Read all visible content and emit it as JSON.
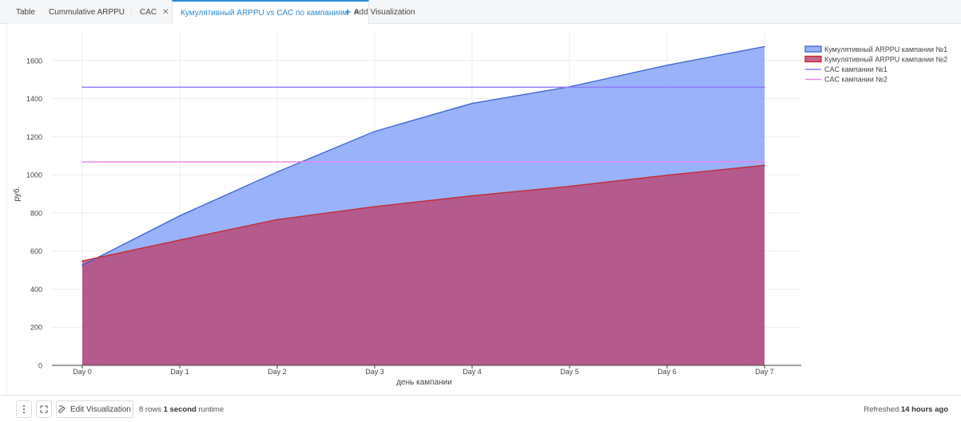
{
  "tabs": [
    {
      "label": "Table",
      "closable": false,
      "active": false
    },
    {
      "label": "Cummulative ARPPU",
      "closable": true,
      "active": false
    },
    {
      "label": "CAC",
      "closable": true,
      "active": false
    },
    {
      "label": "Кумулятивный ARPPU vs CAC по кампаниям",
      "closable": true,
      "active": true
    }
  ],
  "add_visualization_label": "Add Visualization",
  "footer": {
    "edit_label": "Edit Visualization",
    "rows_count": "8 rows",
    "runtime_value": "1 second",
    "runtime_label": "runtime",
    "refreshed_prefix": "Refreshed",
    "refreshed_value": "14 hours ago"
  },
  "colors": {
    "accent": "#2a8ad6",
    "series1_line": "#3d63d6",
    "series1_fill": "#7f9ff7",
    "series2_line": "#c62828",
    "series2_fill": "#b84a7a",
    "cac1": "#8f78ff",
    "cac2": "#ee82ee"
  },
  "chart_data": {
    "type": "area",
    "title": "",
    "xlabel": "день кампании",
    "ylabel": "руб.",
    "categories": [
      "Day 0",
      "Day 1",
      "Day 2",
      "Day 3",
      "Day 4",
      "Day 5",
      "Day 6",
      "Day 7"
    ],
    "ylim": [
      0,
      1750
    ],
    "yticks": [
      0,
      200,
      400,
      600,
      800,
      1000,
      1200,
      1400,
      1600
    ],
    "grid": true,
    "legend_position": "top-right",
    "series": [
      {
        "name": "Кумулятивный ARPPU кампании №1",
        "kind": "area",
        "values": [
          525,
          785,
          1015,
          1228,
          1375,
          1462,
          1575,
          1673
        ]
      },
      {
        "name": "Кумулятивный ARPPU кампании №2",
        "kind": "area",
        "values": [
          548,
          658,
          765,
          833,
          890,
          940,
          998,
          1050
        ]
      },
      {
        "name": "CAC кампании №1",
        "kind": "line",
        "values": [
          1460,
          1460,
          1460,
          1460,
          1460,
          1460,
          1460,
          1460
        ]
      },
      {
        "name": "CAC кампании №2",
        "kind": "line",
        "values": [
          1068,
          1068,
          1068,
          1068,
          1068,
          1068,
          1068,
          1068
        ]
      }
    ]
  }
}
